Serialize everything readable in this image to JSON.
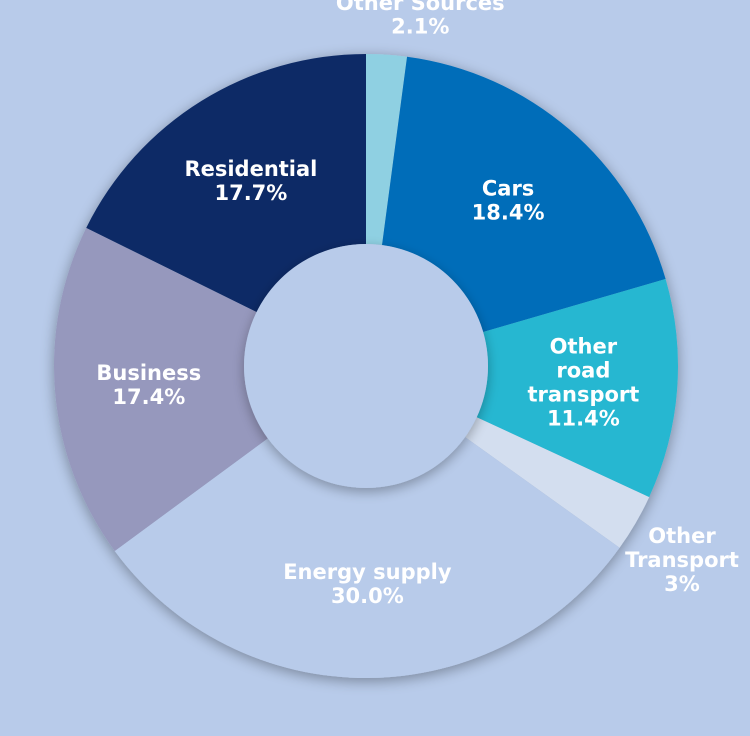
{
  "chart_data": {
    "type": "pie",
    "style": "donut",
    "start": "top",
    "direction": "clockwise",
    "background": "#b8cbea",
    "slices": [
      {
        "name": "Other Sources",
        "value": 2.1,
        "label_lines": [
          "Other Sources",
          "2.1%"
        ],
        "color": "#8fd0e2",
        "label_position": "outside"
      },
      {
        "name": "Cars",
        "value": 18.4,
        "label_lines": [
          "Cars",
          "18.4%"
        ],
        "color": "#006db9",
        "label_position": "inside"
      },
      {
        "name": "Other road transport",
        "value": 11.4,
        "label_lines": [
          "Other",
          "road",
          "transport",
          "11.4%"
        ],
        "color": "#26b7d1",
        "label_position": "inside"
      },
      {
        "name": "Other Transport",
        "value": 3,
        "label_lines": [
          "Other",
          "Transport",
          "3%"
        ],
        "color": "#d3deef",
        "label_position": "outside"
      },
      {
        "name": "Energy supply",
        "value": 30.0,
        "label_lines": [
          "Energy supply",
          "30.0%"
        ],
        "color": "#b8cbea",
        "label_position": "inside"
      },
      {
        "name": "Business",
        "value": 17.4,
        "label_lines": [
          "Business",
          "17.4%"
        ],
        "color": "#9698bd",
        "label_position": "inside"
      },
      {
        "name": "Residential",
        "value": 17.7,
        "label_lines": [
          "Residential",
          "17.7%"
        ],
        "color": "#0c2a66",
        "label_position": "inside"
      }
    ]
  }
}
